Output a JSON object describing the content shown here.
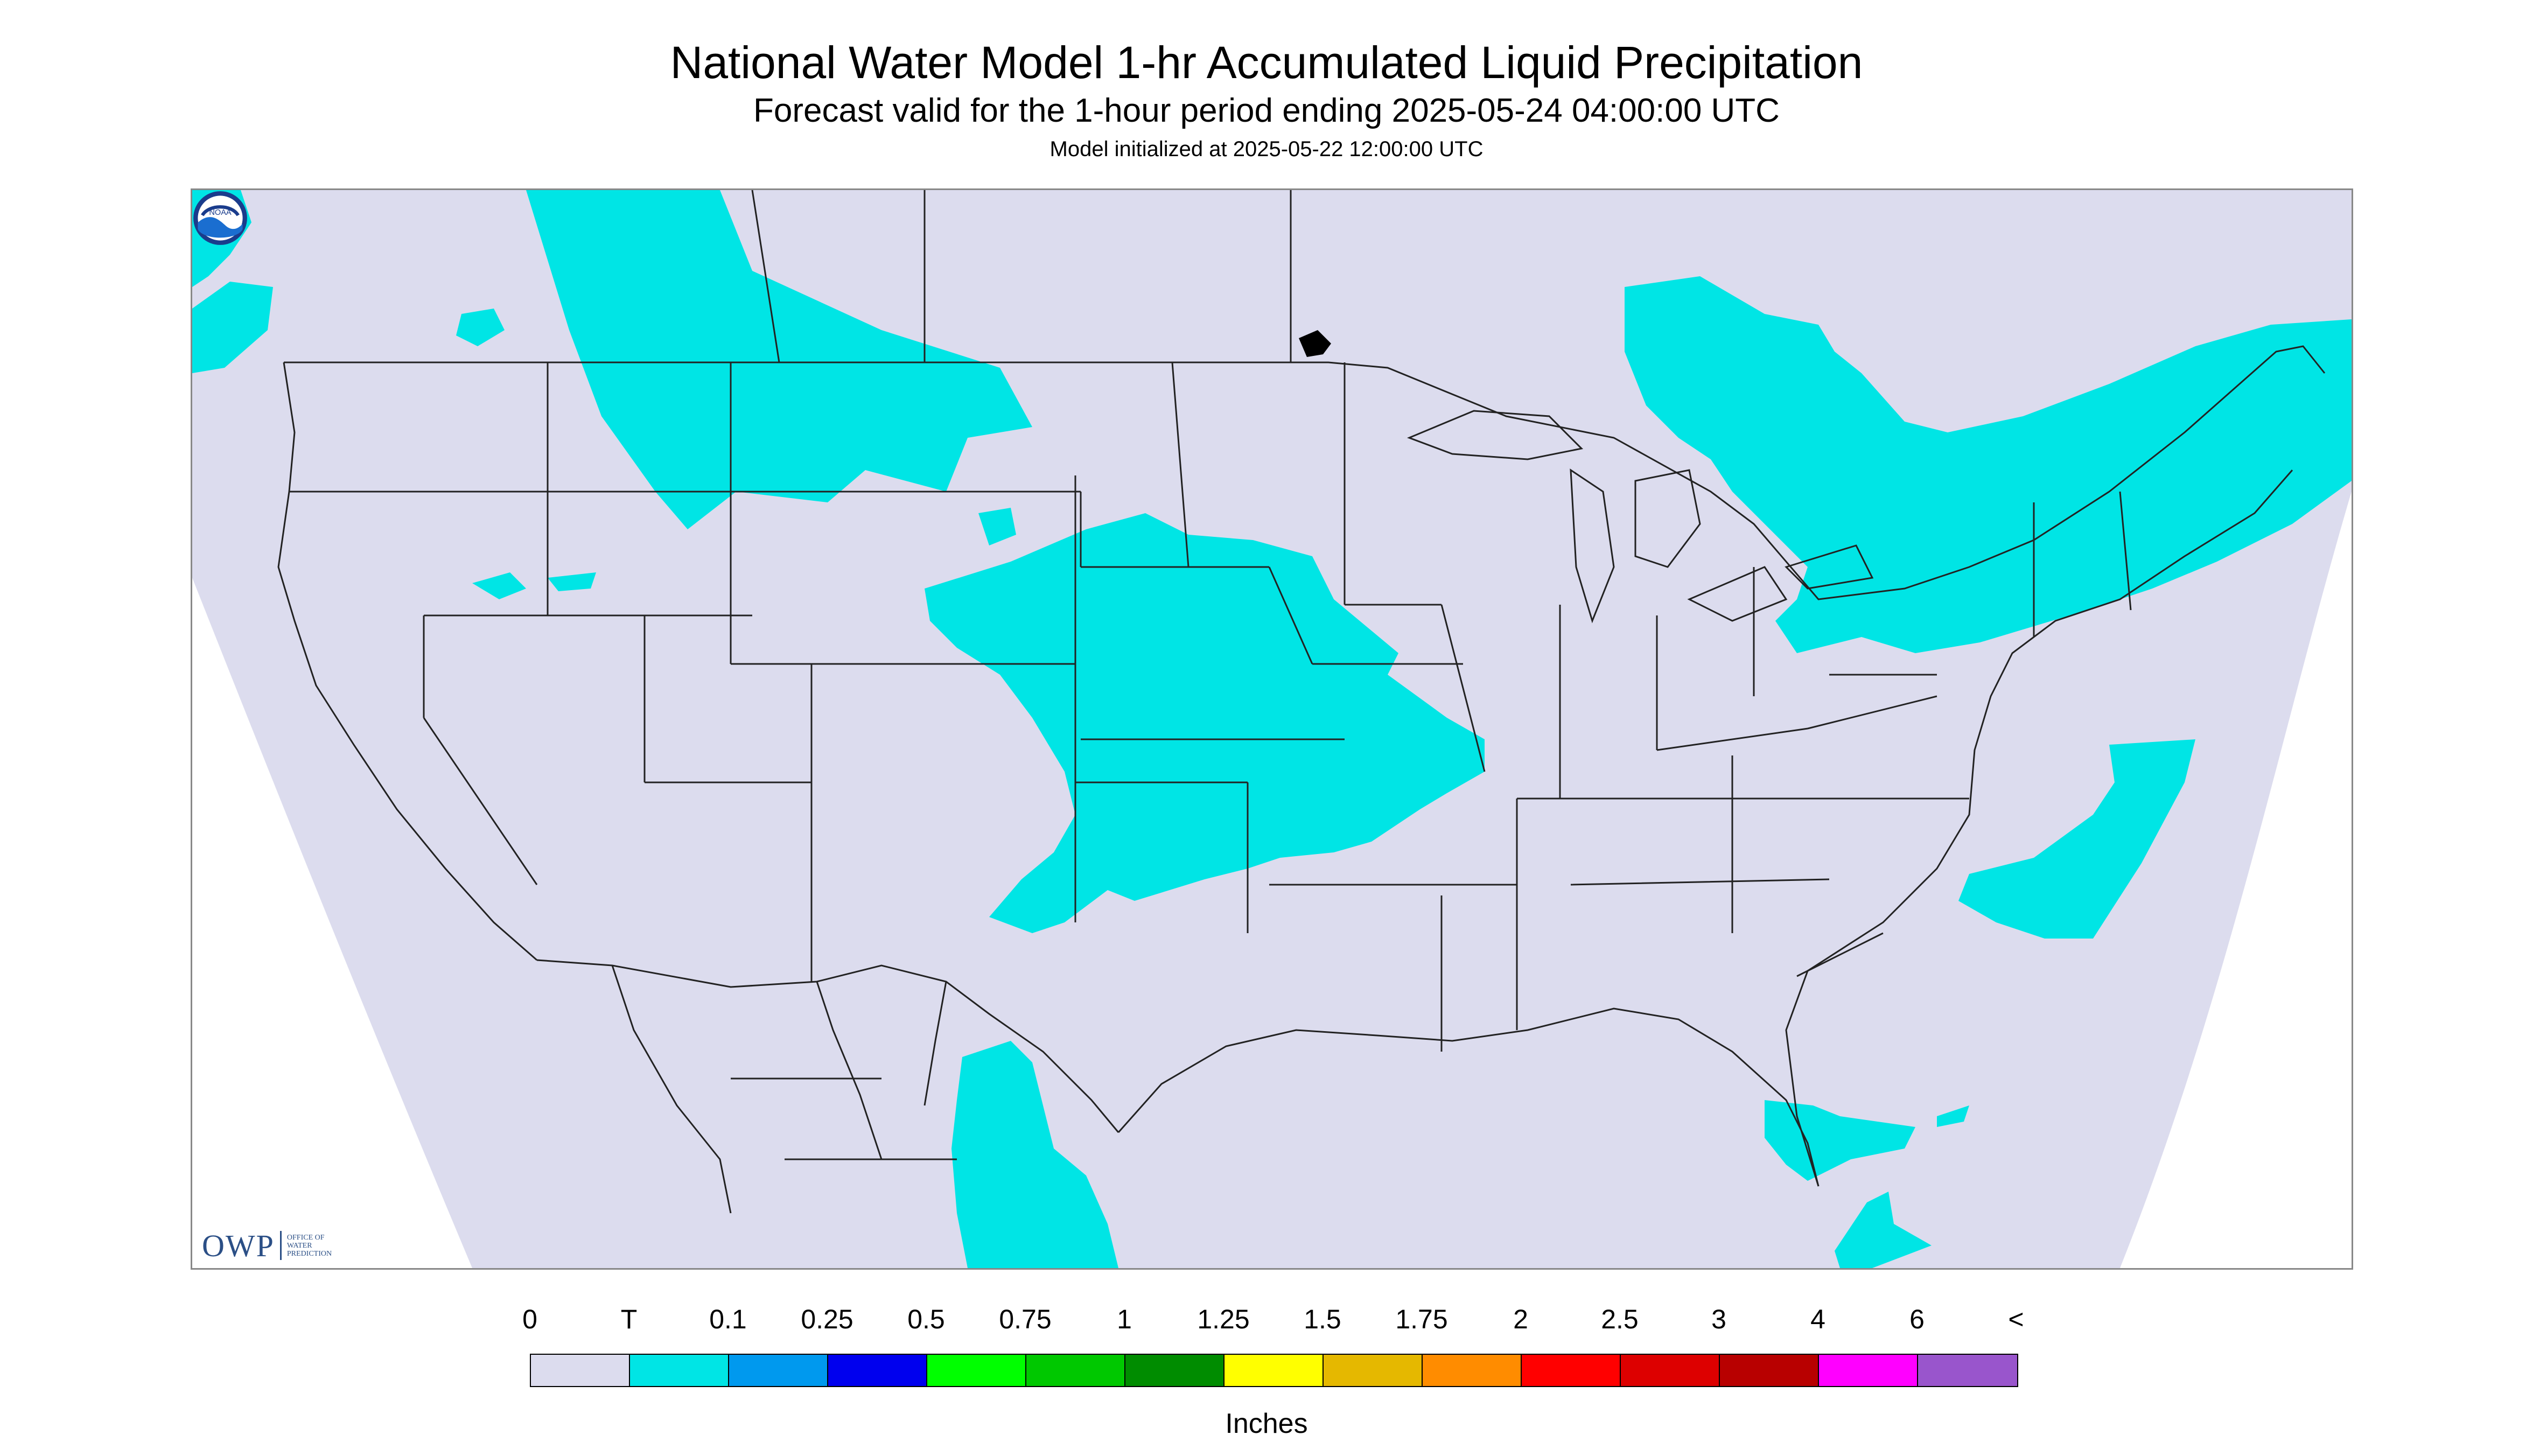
{
  "header": {
    "title": "National Water Model 1-hr Accumulated Liquid Precipitation",
    "subtitle": "Forecast valid for the 1-hour period ending 2025-05-24 04:00:00 UTC",
    "init": "Model initialized at 2025-05-22 12:00:00 UTC"
  },
  "map": {
    "background_color": "#dcdcee",
    "outside_color": "#ffffff",
    "precip_color": "#00e5e5",
    "border_color": "#222222"
  },
  "logos": {
    "owp_text": "OWP",
    "owp_sub": [
      "Office of",
      "Water",
      "Prediction"
    ],
    "noaa_text": "NOAA"
  },
  "legend": {
    "labels": [
      "0",
      "T",
      "0.1",
      "0.25",
      "0.5",
      "0.75",
      "1",
      "1.25",
      "1.5",
      "1.75",
      "2",
      "2.5",
      "3",
      "4",
      "6",
      "<"
    ],
    "colors": [
      "#dcdcee",
      "#00e5e5",
      "#0099ee",
      "#0000ee",
      "#00ff00",
      "#00c800",
      "#008c00",
      "#ffff00",
      "#e5b800",
      "#ff8c00",
      "#ff0000",
      "#dd0000",
      "#b80000",
      "#ff00ff",
      "#9955cc"
    ],
    "units": "Inches"
  }
}
